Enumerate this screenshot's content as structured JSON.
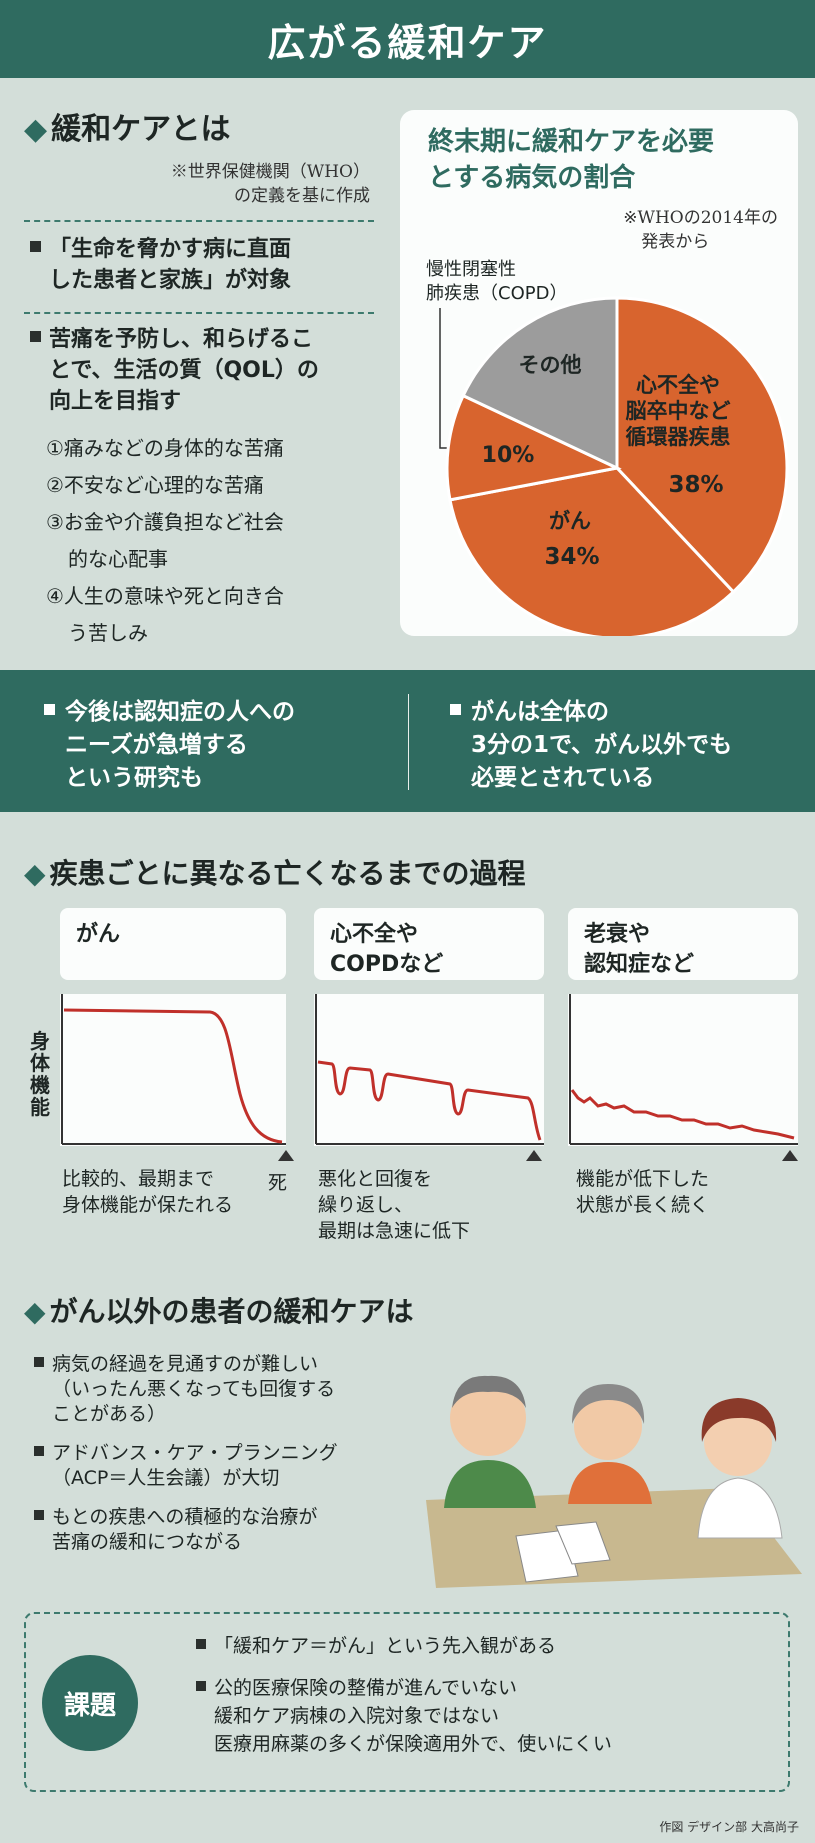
{
  "title": "広がる緩和ケア",
  "what_is": {
    "heading": "緩和ケアとは",
    "note_line1": "※世界保健機関（WHO）",
    "note_line2": "の定義を基に作成",
    "point1_line1": "「生命を脅かす病に直面",
    "point1_line2": "した患者と家族」が対象",
    "point2_line1": "苦痛を予防し、和らげるこ",
    "point2_line2": "とで、生活の質（QOL）の",
    "point2_line3": "向上を目指す",
    "list": [
      {
        "l1": "①痛みなどの身体的な苦痛",
        "l2": ""
      },
      {
        "l1": "②不安など心理的な苦痛",
        "l2": ""
      },
      {
        "l1": "③お金や介護負担など社会",
        "l2": "的な心配事"
      },
      {
        "l1": "④人生の意味や死と向き合",
        "l2": "う苦しみ"
      }
    ]
  },
  "chart_data": {
    "type": "pie",
    "title_line1": "終末期に緩和ケアを必要",
    "title_line2": "とする病気の割合",
    "note_line1": "※WHOの2014年の",
    "note_line2": "発表から",
    "slices": [
      {
        "label_line1": "心不全や",
        "label_line2": "脳卒中など",
        "label_line3": "循環器疾患",
        "value": 38,
        "value_label": "38%",
        "color": "#d8642e"
      },
      {
        "label_line1": "がん",
        "label_line2": "",
        "label_line3": "",
        "value": 34,
        "value_label": "34%",
        "color": "#d8642e"
      },
      {
        "label_line1": "慢性閉塞性",
        "label_line2": "肺疾患（COPD）",
        "label_line3": "",
        "value": 10,
        "value_label": "10%",
        "color": "#d8642e"
      },
      {
        "label_line1": "その他",
        "label_line2": "",
        "label_line3": "",
        "value": 18,
        "value_label": "",
        "color": "#9c9c9c"
      }
    ]
  },
  "band": {
    "left_line1": "今後は認知症の人への",
    "left_line2": "ニーズが急増する",
    "left_line3": "という研究も",
    "right_line1": "がんは全体の",
    "right_line2": "3分の1で、がん以外でも",
    "right_line3": "必要とされている"
  },
  "process": {
    "heading": "疾患ごとに異なる亡くなるまでの過程",
    "ylabel": "身体機能",
    "death_label": "死",
    "cat1": {
      "line1": "がん",
      "line2": "",
      "cap1": "比較的、最期まで",
      "cap2": "身体機能が保たれる",
      "cap3": ""
    },
    "cat2": {
      "line1": "心不全や",
      "line2": "COPDなど",
      "cap1": "悪化と回復を",
      "cap2": "繰り返し、",
      "cap3": "最期は急速に低下"
    },
    "cat3": {
      "line1": "老衰や",
      "line2": "認知症など",
      "cap1": "機能が低下した",
      "cap2": "状態が長く続く",
      "cap3": ""
    }
  },
  "non_cancer": {
    "heading": "がん以外の患者の緩和ケアは",
    "items": [
      {
        "l1": "病気の経過を見通すのが難しい",
        "l2": "（いったん悪くなっても回復する",
        "l3": "ことがある）"
      },
      {
        "l1": "アドバンス・ケア・プランニング",
        "l2": "（ACP＝人生会議）が大切",
        "l3": ""
      },
      {
        "l1": "もとの疾患への積極的な治療が",
        "l2": "苦痛の緩和につながる",
        "l3": ""
      }
    ]
  },
  "issues": {
    "label": "課題",
    "item1": "「緩和ケア＝がん」という先入観がある",
    "item2_l1": "公的医療保険の整備が進んでいない",
    "item2_l2": "緩和ケア病棟の入院対象ではない",
    "item2_l3": "医療用麻薬の多くが保険適用外で、使いにくい"
  },
  "credit": "作図 デザイン部 大高尚子"
}
